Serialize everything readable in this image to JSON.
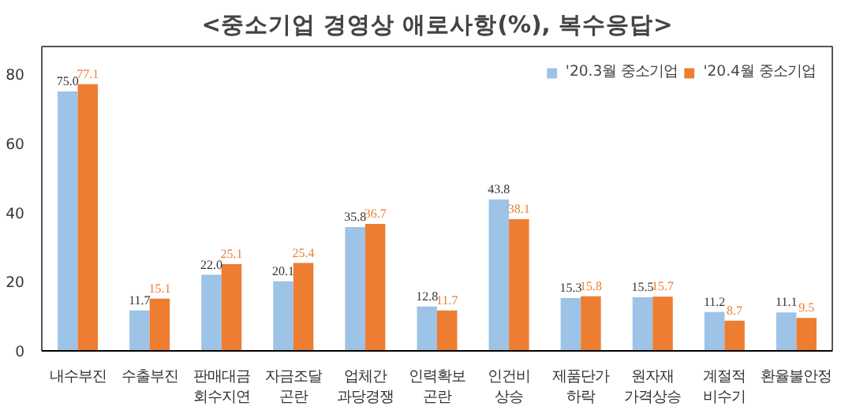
{
  "chart_data": {
    "type": "bar",
    "title": "<중소기업 경영상 애로사항(%), 복수응답>",
    "categories": [
      "내수부진",
      "수출부진",
      "판매대금\n회수지연",
      "자금조달\n곤란",
      "업체간\n과당경쟁",
      "인력확보\n곤란",
      "인건비\n상승",
      "제품단가\n하락",
      "원자재\n가격상승",
      "계절적\n비수기",
      "환율불안정"
    ],
    "series": [
      {
        "name": "'20.3월 중소기업",
        "color": "#9dc3e6",
        "values": [
          75.0,
          11.7,
          22.0,
          20.1,
          35.8,
          12.8,
          43.8,
          15.3,
          15.5,
          11.2,
          11.1
        ],
        "value_labels": [
          "75.0",
          "11.7",
          "22.0",
          "20.1",
          "35.8",
          "12.8",
          "43.8",
          "15.3",
          "15.5",
          "11.2",
          "11.1"
        ]
      },
      {
        "name": "'20.4월 중소기업",
        "color": "#ed7d31",
        "values": [
          77.1,
          15.1,
          25.1,
          25.4,
          36.7,
          11.7,
          38.1,
          15.8,
          15.7,
          8.7,
          9.5
        ],
        "value_labels": [
          "77.1",
          "15.1",
          "25.1",
          "25.4",
          "36.7",
          "11.7",
          "38.1",
          "15.8",
          "15.7",
          "8.7",
          "9.5"
        ]
      }
    ],
    "ylim": [
      0,
      88
    ],
    "yticks": [
      0,
      20,
      40,
      60,
      80
    ],
    "grid": false,
    "legend": "top right"
  }
}
